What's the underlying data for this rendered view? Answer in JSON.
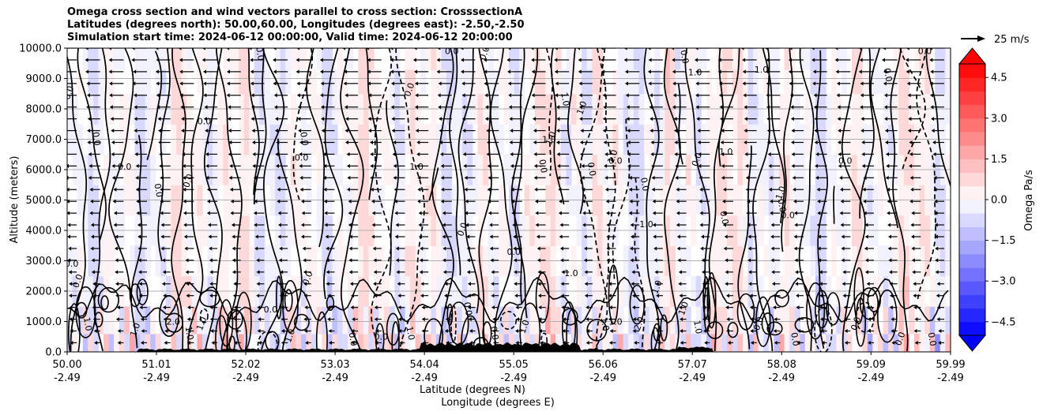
{
  "chart_data": {
    "type": "contour",
    "title_lines": [
      "Omega cross section and wind vectors parallel to cross section: CrosssectionA",
      "Latitudes (degrees north): 50.00,60.00, Longitudes (degrees east): -2.50,-2.50",
      "Simulation start time: 2024-06-12 00:00:00, Valid time: 2024-06-12 20:00:00"
    ],
    "ylabel": "Altitude (meters)",
    "xlabel_lat": "Latitude (degrees N)",
    "xlabel_lon": "Longitude (degrees E)",
    "ylim": [
      0,
      10000
    ],
    "xlim": [
      50.0,
      59.99
    ],
    "y_ticks": [
      {
        "value": 0,
        "label": "0.0"
      },
      {
        "value": 1000,
        "label": "1000.0"
      },
      {
        "value": 2000,
        "label": "2000.0"
      },
      {
        "value": 3000,
        "label": "3000.0"
      },
      {
        "value": 4000,
        "label": "4000.0"
      },
      {
        "value": 5000,
        "label": "5000.0"
      },
      {
        "value": 6000,
        "label": "6000.0"
      },
      {
        "value": 7000,
        "label": "7000.0"
      },
      {
        "value": 8000,
        "label": "8000.0"
      },
      {
        "value": 9000,
        "label": "9000.0"
      },
      {
        "value": 10000,
        "label": "10000.0"
      }
    ],
    "x_ticks": [
      {
        "lat": 50.0,
        "lat_label": "50.00",
        "lon_label": "-2.49"
      },
      {
        "lat": 51.01,
        "lat_label": "51.01",
        "lon_label": "-2.49"
      },
      {
        "lat": 52.02,
        "lat_label": "52.02",
        "lon_label": "-2.49"
      },
      {
        "lat": 53.03,
        "lat_label": "53.03",
        "lon_label": "-2.49"
      },
      {
        "lat": 54.04,
        "lat_label": "54.04",
        "lon_label": "-2.49"
      },
      {
        "lat": 55.05,
        "lat_label": "55.05",
        "lon_label": "-2.49"
      },
      {
        "lat": 56.06,
        "lat_label": "56.06",
        "lon_label": "-2.49"
      },
      {
        "lat": 57.07,
        "lat_label": "57.07",
        "lon_label": "-2.49"
      },
      {
        "lat": 58.08,
        "lat_label": "58.08",
        "lon_label": "-2.49"
      },
      {
        "lat": 59.09,
        "lat_label": "59.09",
        "lon_label": "-2.49"
      },
      {
        "lat": 59.99,
        "lat_label": "59.99",
        "lon_label": "-2.49"
      }
    ],
    "colorbar": {
      "label": "Omega Pa/s",
      "range": [
        -5.0,
        5.0
      ],
      "levels": [
        -5.0,
        -4.5,
        -4.0,
        -3.5,
        -3.0,
        -2.5,
        -2.0,
        -1.5,
        -1.0,
        -0.5,
        0.0,
        0.5,
        1.0,
        1.5,
        2.0,
        2.5,
        3.0,
        3.5,
        4.0,
        4.5,
        5.0
      ],
      "ticks": [
        {
          "value": 4.5,
          "label": "4.5"
        },
        {
          "value": 3.0,
          "label": "3.0"
        },
        {
          "value": 1.5,
          "label": "1.5"
        },
        {
          "value": 0.0,
          "label": "0.0"
        },
        {
          "value": -1.5,
          "label": "−1.5"
        },
        {
          "value": -3.0,
          "label": "−3.0"
        },
        {
          "value": -4.5,
          "label": "−4.5"
        }
      ],
      "extend": "both",
      "colormap": "bwr",
      "neg_color": "#0000ff",
      "pos_color": "#ff0000"
    },
    "quiver_key": {
      "label": "25 m/s",
      "value": 25
    },
    "wind_direction": "southward (toward lower latitude)",
    "contour_levels_drawn": [
      -2.0,
      -1.0,
      0.0,
      1.0,
      2.0
    ],
    "contour_labels": [
      {
        "text": "0.0",
        "lat": 50.05,
        "alt": 8500
      },
      {
        "text": "0.0",
        "lat": 50.3,
        "alt": 7000
      },
      {
        "text": "0.0",
        "lat": 50.05,
        "alt": 2800
      },
      {
        "text": "0.0",
        "lat": 50.15,
        "alt": 2300
      },
      {
        "text": "1.0",
        "lat": 50.2,
        "alt": 900
      },
      {
        "text": "0.0",
        "lat": 50.65,
        "alt": 6000
      },
      {
        "text": "1.0",
        "lat": 50.8,
        "alt": 700
      },
      {
        "text": "0.0",
        "lat": 51.0,
        "alt": 5300
      },
      {
        "text": "2.0",
        "lat": 51.2,
        "alt": 900
      },
      {
        "text": "0.0",
        "lat": 51.4,
        "alt": 5600
      },
      {
        "text": "1.0",
        "lat": 51.35,
        "alt": 600
      },
      {
        "text": "0.0",
        "lat": 51.55,
        "alt": 7500
      },
      {
        "text": "1.0",
        "lat": 51.55,
        "alt": 900
      },
      {
        "text": "0.0",
        "lat": 52.15,
        "alt": 9800
      },
      {
        "text": "0.0",
        "lat": 52.3,
        "alt": 1300
      },
      {
        "text": "1.0",
        "lat": 52.55,
        "alt": 500
      },
      {
        "text": "0.0",
        "lat": 52.65,
        "alt": 7000
      },
      {
        "text": "0.0",
        "lat": 52.65,
        "alt": 6300
      },
      {
        "text": "0.0",
        "lat": 52.75,
        "alt": 2400
      },
      {
        "text": "0.0",
        "lat": 53.2,
        "alt": 400
      },
      {
        "text": "0.0",
        "lat": 53.55,
        "alt": 400
      },
      {
        "text": "0.0",
        "lat": 53.9,
        "alt": 8600
      },
      {
        "text": "1.0",
        "lat": 53.85,
        "alt": 600
      },
      {
        "text": "1.0",
        "lat": 53.95,
        "alt": 6000
      },
      {
        "text": "0.0",
        "lat": 54.5,
        "alt": 4000
      },
      {
        "text": "0.0",
        "lat": 54.5,
        "alt": 1400
      },
      {
        "text": "0.0",
        "lat": 54.35,
        "alt": 9800
      },
      {
        "text": "0.0",
        "lat": 54.75,
        "alt": 9800
      },
      {
        "text": "0.0",
        "lat": 54.8,
        "alt": 600
      },
      {
        "text": "0.0",
        "lat": 55.05,
        "alt": 3200
      },
      {
        "text": "1.0",
        "lat": 55.2,
        "alt": 800
      },
      {
        "text": "0.0",
        "lat": 55.35,
        "alt": 6100
      },
      {
        "text": "1.0",
        "lat": 55.45,
        "alt": 6900
      },
      {
        "text": "1.0",
        "lat": 55.5,
        "alt": 7000
      },
      {
        "text": "1.0",
        "lat": 55.6,
        "alt": 8300
      },
      {
        "text": "1.0",
        "lat": 55.7,
        "alt": 2500
      },
      {
        "text": "1.0",
        "lat": 55.85,
        "alt": 8000
      },
      {
        "text": "0.0",
        "lat": 55.9,
        "alt": 6000
      },
      {
        "text": "0.0",
        "lat": 56.2,
        "alt": 6200
      },
      {
        "text": "1.0",
        "lat": 56.2,
        "alt": 6400
      },
      {
        "text": "1.0",
        "lat": 56.05,
        "alt": 900
      },
      {
        "text": "1.0",
        "lat": 56.2,
        "alt": 900
      },
      {
        "text": "2.0",
        "lat": 56.5,
        "alt": 900
      },
      {
        "text": "0.0",
        "lat": 56.5,
        "alt": 5500
      },
      {
        "text": "1.0",
        "lat": 56.55,
        "alt": 4100
      },
      {
        "text": "1.0",
        "lat": 56.7,
        "alt": 2100
      },
      {
        "text": "0.0",
        "lat": 56.95,
        "alt": 9700
      },
      {
        "text": "1.0",
        "lat": 57.1,
        "alt": 9100
      },
      {
        "text": "1.0",
        "lat": 57.0,
        "alt": 1400
      },
      {
        "text": "1.0",
        "lat": 57.1,
        "alt": 800
      },
      {
        "text": "1.0",
        "lat": 57.45,
        "alt": 6500
      },
      {
        "text": "0.0",
        "lat": 57.15,
        "alt": 6300
      },
      {
        "text": "0.0",
        "lat": 57.4,
        "alt": 4400
      },
      {
        "text": "1.0",
        "lat": 57.85,
        "alt": 9200
      },
      {
        "text": "1.0",
        "lat": 58.1,
        "alt": 5200
      },
      {
        "text": "0.0",
        "lat": 58.05,
        "alt": 4800
      },
      {
        "text": "0.0",
        "lat": 58.15,
        "alt": 4400
      },
      {
        "text": "0.0",
        "lat": 57.85,
        "alt": 900
      },
      {
        "text": "0.0",
        "lat": 58.2,
        "alt": 400
      },
      {
        "text": "0.0",
        "lat": 58.8,
        "alt": 6200
      },
      {
        "text": "0.0",
        "lat": 58.95,
        "alt": 900
      },
      {
        "text": "0.0",
        "lat": 59.25,
        "alt": 9100
      },
      {
        "text": "0.0",
        "lat": 59.7,
        "alt": 9800
      },
      {
        "text": "0.0",
        "lat": 59.45,
        "alt": 400
      },
      {
        "text": "0.0",
        "lat": 59.75,
        "alt": 400
      }
    ]
  }
}
